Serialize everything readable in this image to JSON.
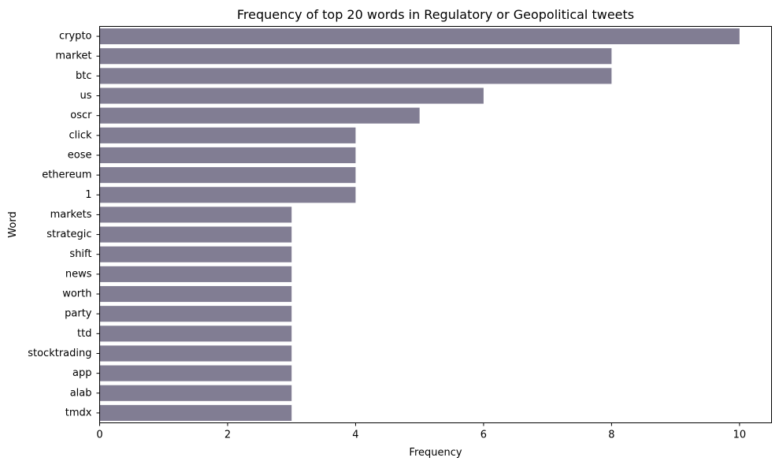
{
  "chart_data": {
    "type": "bar",
    "orientation": "horizontal",
    "title": "Frequency of top 20 words in Regulatory or Geopolitical tweets",
    "xlabel": "Frequency",
    "ylabel": "Word",
    "categories": [
      "crypto",
      "market",
      "btc",
      "us",
      "oscr",
      "click",
      "eose",
      "ethereum",
      "1",
      "markets",
      "strategic",
      "shift",
      "news",
      "worth",
      "party",
      "ttd",
      "stocktrading",
      "app",
      "alab",
      "tmdx"
    ],
    "values": [
      10,
      8,
      8,
      6,
      5,
      4,
      4,
      4,
      4,
      3,
      3,
      3,
      3,
      3,
      3,
      3,
      3,
      3,
      3,
      3
    ],
    "xticks": [
      "0",
      "2",
      "4",
      "6",
      "8",
      "10"
    ],
    "xlim": [
      0,
      10.5
    ],
    "grid": false,
    "legend": "none",
    "bar_color": "#817d93"
  }
}
